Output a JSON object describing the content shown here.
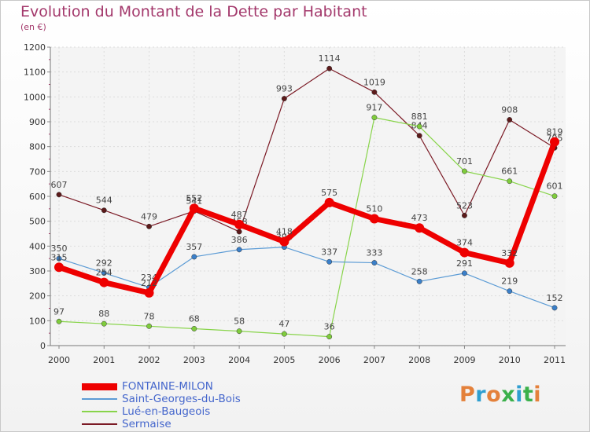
{
  "title": "Evolution du Montant de la Dette par Habitant",
  "subtitle": "(en €)",
  "logo": {
    "text": "Proxiti",
    "letter_colors": [
      "#e4813b",
      "#2f9fd0",
      "#e4813b",
      "#3bb04b",
      "#2f9fd0",
      "#3bb04b",
      "#e4813b"
    ]
  },
  "chart_data": {
    "type": "line",
    "title": "Evolution du Montant de la Dette par Habitant",
    "subtitle": "(en €)",
    "xlabel": "",
    "ylabel": "",
    "x": [
      "2000",
      "2001",
      "2002",
      "2003",
      "2004",
      "2005",
      "2006",
      "2007",
      "2008",
      "2009",
      "2010",
      "2011"
    ],
    "ylim": [
      0,
      1200
    ],
    "yticks": [
      0,
      100,
      200,
      300,
      400,
      500,
      600,
      700,
      800,
      900,
      1000,
      1100,
      1200
    ],
    "grid": true,
    "legend_position": "bottom-left",
    "series": [
      {
        "name": "Sermaise",
        "color": "#7b1a25",
        "marker": "#5c1a1a",
        "width": 1.2,
        "values": [
          607,
          544,
          479,
          541,
          458,
          993,
          1114,
          1019,
          844,
          523,
          908,
          795
        ]
      },
      {
        "name": "Lué-en-Baugeois",
        "color": "#88d44a",
        "marker": "#7fcc3c",
        "width": 1.2,
        "values": [
          97,
          88,
          78,
          68,
          58,
          47,
          36,
          917,
          881,
          701,
          661,
          601
        ]
      },
      {
        "name": "Saint-Georges-du-Bois",
        "color": "#5b9bd5",
        "marker": "#3a7fc9",
        "width": 1.2,
        "values": [
          350,
          292,
          234,
          357,
          386,
          396,
          337,
          333,
          258,
          291,
          219,
          152
        ]
      },
      {
        "name": "FONTAINE-MILON",
        "color": "#ee0000",
        "marker": "#ee0000",
        "width": 7,
        "values": [
          315,
          254,
          212,
          552,
          487,
          418,
          575,
          510,
          473,
          374,
          332,
          819
        ]
      }
    ],
    "legend_order": [
      "FONTAINE-MILON",
      "Saint-Georges-du-Bois",
      "Lué-en-Baugeois",
      "Sermaise"
    ]
  }
}
